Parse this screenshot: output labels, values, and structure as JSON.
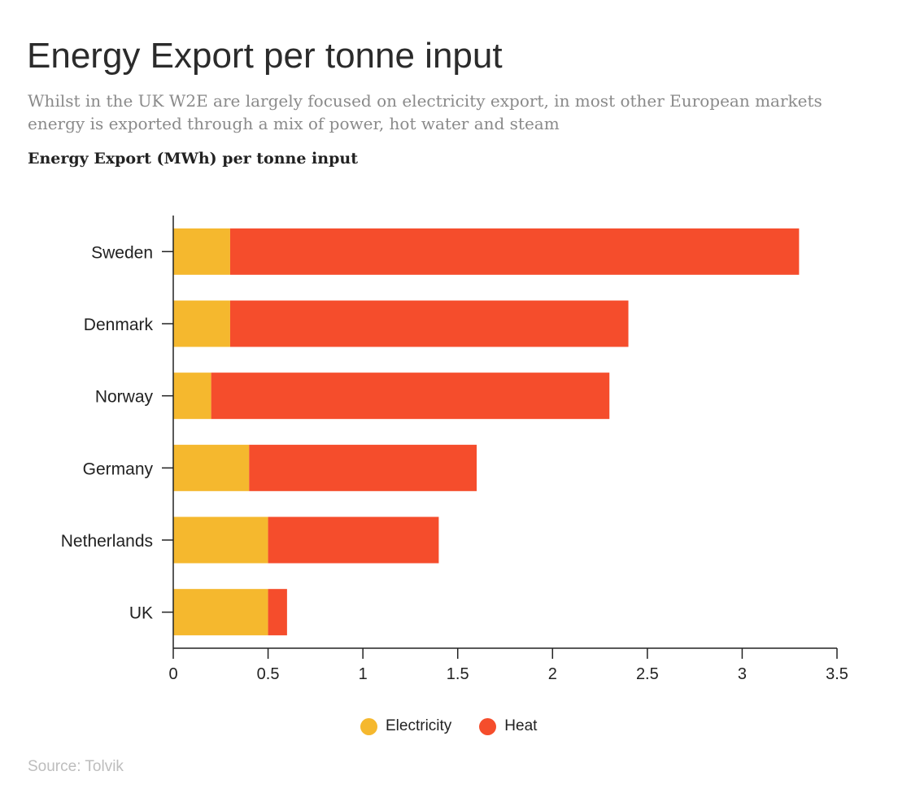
{
  "chart_data": {
    "type": "bar",
    "orientation": "horizontal",
    "stacked": true,
    "title": "Energy Export per tonne input",
    "subtitle": "Whilst in the UK W2E are largely focused on electricity export, in most other European markets energy is exported through a mix of power, hot water and steam",
    "value_axis_title": "Energy Export (MWh) per tonne input",
    "categories": [
      "Sweden",
      "Denmark",
      "Norway",
      "Germany",
      "Netherlands",
      "UK"
    ],
    "series": [
      {
        "name": "Electricity",
        "color": "#F5B82E",
        "values": [
          0.3,
          0.3,
          0.2,
          0.4,
          0.5,
          0.5
        ]
      },
      {
        "name": "Heat",
        "color": "#F54D2C",
        "values": [
          3.0,
          2.1,
          2.1,
          1.2,
          0.9,
          0.1
        ]
      }
    ],
    "xlim": [
      0,
      3.5
    ],
    "xticks": [
      "0",
      "0.5",
      "1",
      "1.5",
      "2",
      "2.5",
      "3",
      "3.5"
    ],
    "grid": false,
    "legend_position": "bottom",
    "source": "Source: Tolvik"
  }
}
